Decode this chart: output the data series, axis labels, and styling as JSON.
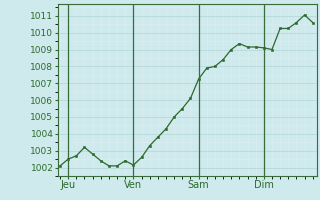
{
  "background_color": "#ceeaed",
  "grid_major_color": "#b8d8db",
  "grid_minor_color": "#daeef0",
  "line_color": "#2d6a2d",
  "marker_color": "#2d6a2d",
  "vline_color": "#3a6b3a",
  "ylim": [
    1001.5,
    1011.7
  ],
  "xlim": [
    -0.3,
    31.5
  ],
  "yticks": [
    1002,
    1003,
    1004,
    1005,
    1006,
    1007,
    1008,
    1009,
    1010,
    1011
  ],
  "day_labels": [
    "Jeu",
    "Ven",
    "Sam",
    "Dim"
  ],
  "day_positions": [
    1,
    9,
    17,
    25
  ],
  "vline_positions": [
    1,
    9,
    17,
    25
  ],
  "x_values": [
    0,
    1,
    2,
    3,
    4,
    5,
    6,
    7,
    8,
    9,
    10,
    11,
    12,
    13,
    14,
    15,
    16,
    17,
    18,
    19,
    20,
    21,
    22,
    23,
    24,
    25,
    26,
    27,
    28,
    29,
    30,
    31
  ],
  "y_values": [
    1002.1,
    1002.5,
    1002.7,
    1003.2,
    1002.8,
    1002.4,
    1002.1,
    1002.1,
    1002.4,
    1002.15,
    1002.6,
    1003.3,
    1003.8,
    1004.3,
    1005.0,
    1005.5,
    1006.1,
    1007.25,
    1007.9,
    1008.0,
    1008.4,
    1009.0,
    1009.35,
    1009.15,
    1009.15,
    1009.1,
    1009.0,
    1010.25,
    1010.25,
    1010.6,
    1011.05,
    1010.6
  ],
  "tick_fontsize": 6.5,
  "label_fontsize": 7,
  "tick_color": "#2d6a2d",
  "spine_color": "#3a6b3a"
}
